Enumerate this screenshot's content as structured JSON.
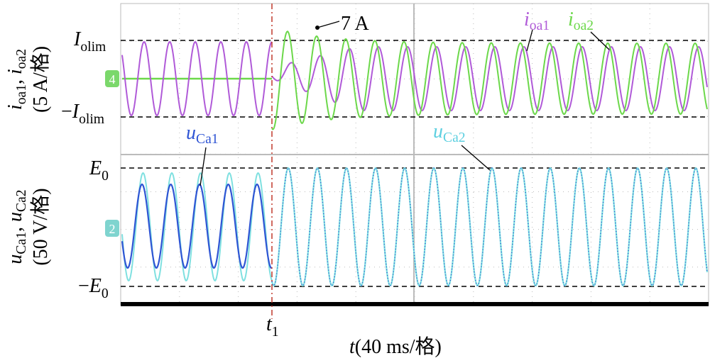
{
  "labels": {
    "top_axis": {
      "s1": "i",
      "b1": "oa1",
      "sep": ", ",
      "s2": "i",
      "b2": "oa2",
      "scale": "(5 A/格)"
    },
    "bottom_axis": {
      "s1": "u",
      "b1": "Ca1",
      "sep": ", ",
      "s2": "u",
      "b2": "Ca2",
      "scale": "(50 V/格)"
    },
    "i_olim": {
      "s": "I",
      "b": "olim"
    },
    "neg_i_olim": {
      "m": "−",
      "s": "I",
      "b": "olim"
    },
    "e0": {
      "s": "E",
      "b": "0"
    },
    "neg_e0": {
      "m": "−",
      "s": "E",
      "b": "0"
    },
    "peak": "7 A",
    "i_oa1": {
      "s": "i",
      "b": "oa1"
    },
    "i_oa2": {
      "s": "i",
      "b": "oa2"
    },
    "u_ca1": {
      "s": "u",
      "b": "Ca1"
    },
    "u_ca2": {
      "s": "u",
      "b": "Ca2"
    },
    "t1": {
      "s": "t",
      "b": "1"
    },
    "time_axis": {
      "s": "t",
      "rest": "(40 ms/格)"
    },
    "channel_4": "4",
    "channel_2": "2"
  }
}
